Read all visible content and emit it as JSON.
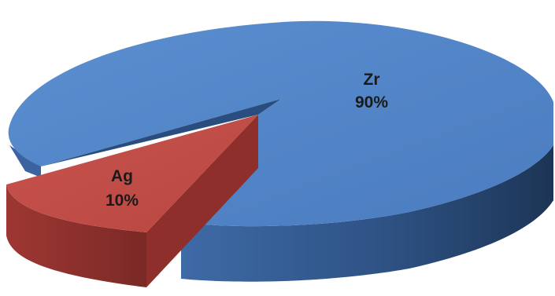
{
  "chart_data": {
    "type": "pie",
    "style": "3d-exploded",
    "title": "",
    "slices": [
      {
        "label": "Zr",
        "value": 90,
        "value_label": "90%",
        "color": "#4f81bd",
        "exploded": false
      },
      {
        "label": "Ag",
        "value": 10,
        "value_label": "10%",
        "color": "#c0504d",
        "exploded": true
      }
    ]
  }
}
